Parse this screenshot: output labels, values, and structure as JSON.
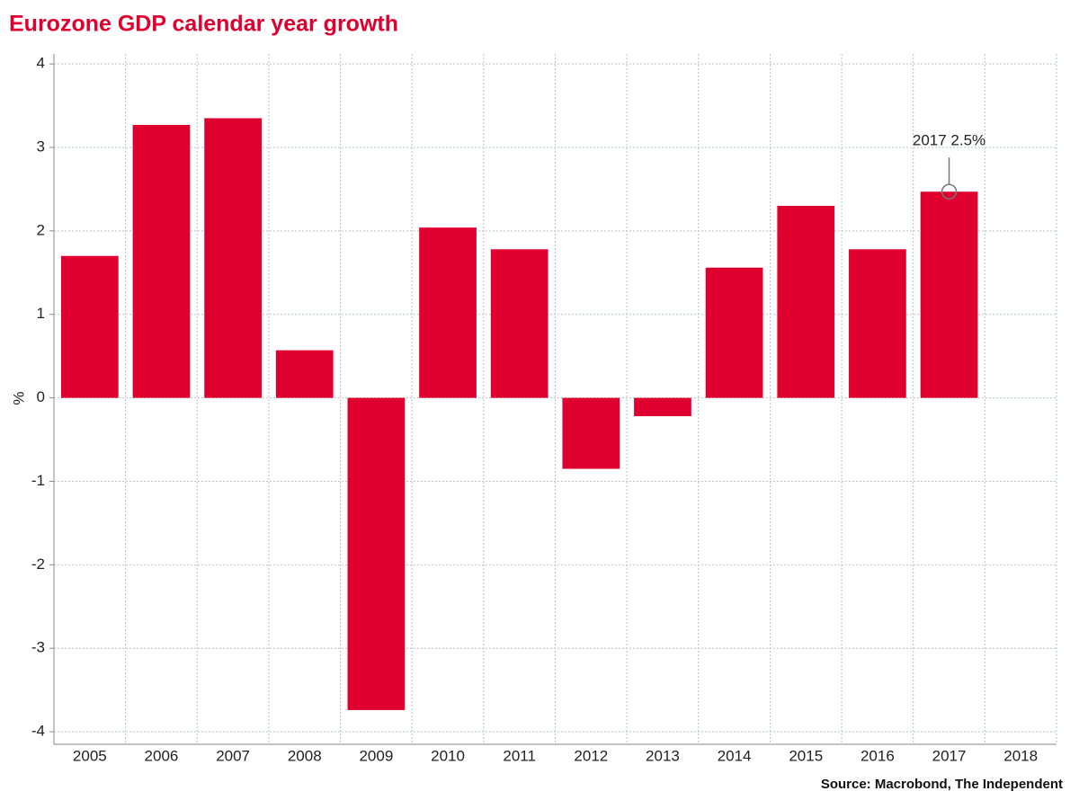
{
  "chart_data": {
    "type": "bar",
    "title": "Eurozone GDP calendar year growth",
    "y_label": "%",
    "categories": [
      "2005",
      "2006",
      "2007",
      "2008",
      "2009",
      "2010",
      "2011",
      "2012",
      "2013",
      "2014",
      "2015",
      "2016",
      "2017",
      "2018"
    ],
    "values": [
      1.7,
      3.27,
      3.35,
      0.57,
      -3.74,
      2.04,
      1.78,
      -0.85,
      -0.22,
      1.56,
      2.3,
      1.78,
      2.47,
      null
    ],
    "color": "#e0002f",
    "ylim": [
      -4.15,
      4.12
    ],
    "yticks": [
      -4,
      -3,
      -2,
      -1,
      0,
      1,
      2,
      3,
      4
    ],
    "grid": true,
    "annotation": {
      "label": "2017 2.5%",
      "category": "2017"
    },
    "source": "Source: Macrobond, The Independent"
  }
}
